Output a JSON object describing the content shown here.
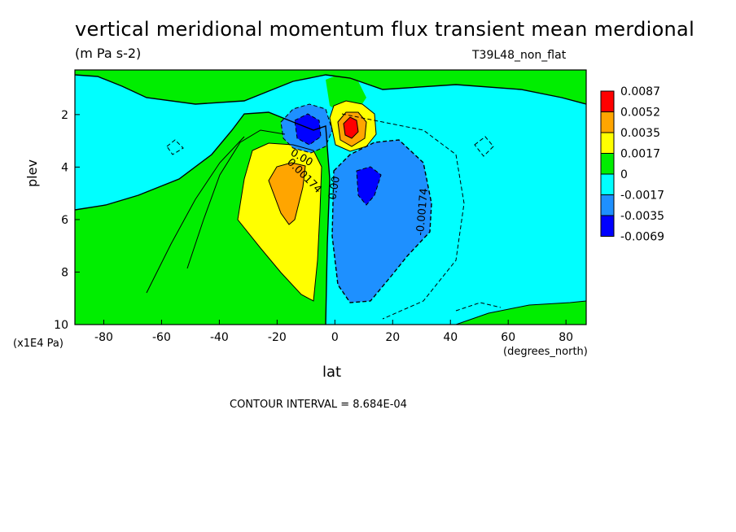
{
  "chart_data": {
    "type": "heatmap",
    "title": "vertical meridional momentum flux transient mean merdional",
    "units": "(m Pa s-2)",
    "experiment": "T39L48_non_flat",
    "xlabel": "lat",
    "x_unit": "(degrees_north)",
    "ylabel": "plev",
    "y_unit": "(x1E4 Pa)",
    "contour_interval_text": "CONTOUR INTERVAL = 8.684E-04",
    "xlim": [
      -90,
      87
    ],
    "ylim": [
      10,
      0.3
    ],
    "x_ticks": [
      "-80",
      "-60",
      "-40",
      "-20",
      "0",
      "20",
      "40",
      "60",
      "80"
    ],
    "x_tick_values": [
      -80,
      -60,
      -40,
      -20,
      0,
      20,
      40,
      60,
      80
    ],
    "y_ticks": [
      "2",
      "4",
      "6",
      "8",
      "10"
    ],
    "y_tick_values": [
      2,
      4,
      6,
      8,
      10
    ],
    "colorbar": {
      "labels": [
        "0.0087",
        "0.0052",
        "0.0035",
        "0.0017",
        "0",
        "-0.0017",
        "-0.0035",
        "-0.0069"
      ],
      "colors": [
        "#ff0000",
        "#ffa500",
        "#ffff00",
        "#00ee00",
        "#00ffff",
        "#1e90ff",
        "#0000ff"
      ]
    },
    "contour_labels": [
      {
        "text": "0.00",
        "lat": -9,
        "plev": 3.4,
        "angle": 30
      },
      {
        "text": "0.00174",
        "lat": -8,
        "plev": 4.0,
        "angle": 45
      },
      {
        "text": "0.00",
        "lat": 2,
        "plev": 4.3,
        "angle": -80
      },
      {
        "text": "-0.00174",
        "lat": 31,
        "plev": 5.0,
        "angle": -85
      }
    ],
    "features": [
      {
        "name": "positive maximum",
        "lat": 7,
        "plev": 2.4,
        "value": 0.0087
      },
      {
        "name": "negative minimum",
        "lat": -8,
        "plev": 2.4,
        "value": -0.0035
      },
      {
        "name": "positive lobe",
        "lat": -17,
        "plev": 5.0,
        "value": 0.0035
      },
      {
        "name": "negative lobe",
        "lat": 13,
        "plev": 4.7,
        "value": -0.0035
      }
    ]
  }
}
